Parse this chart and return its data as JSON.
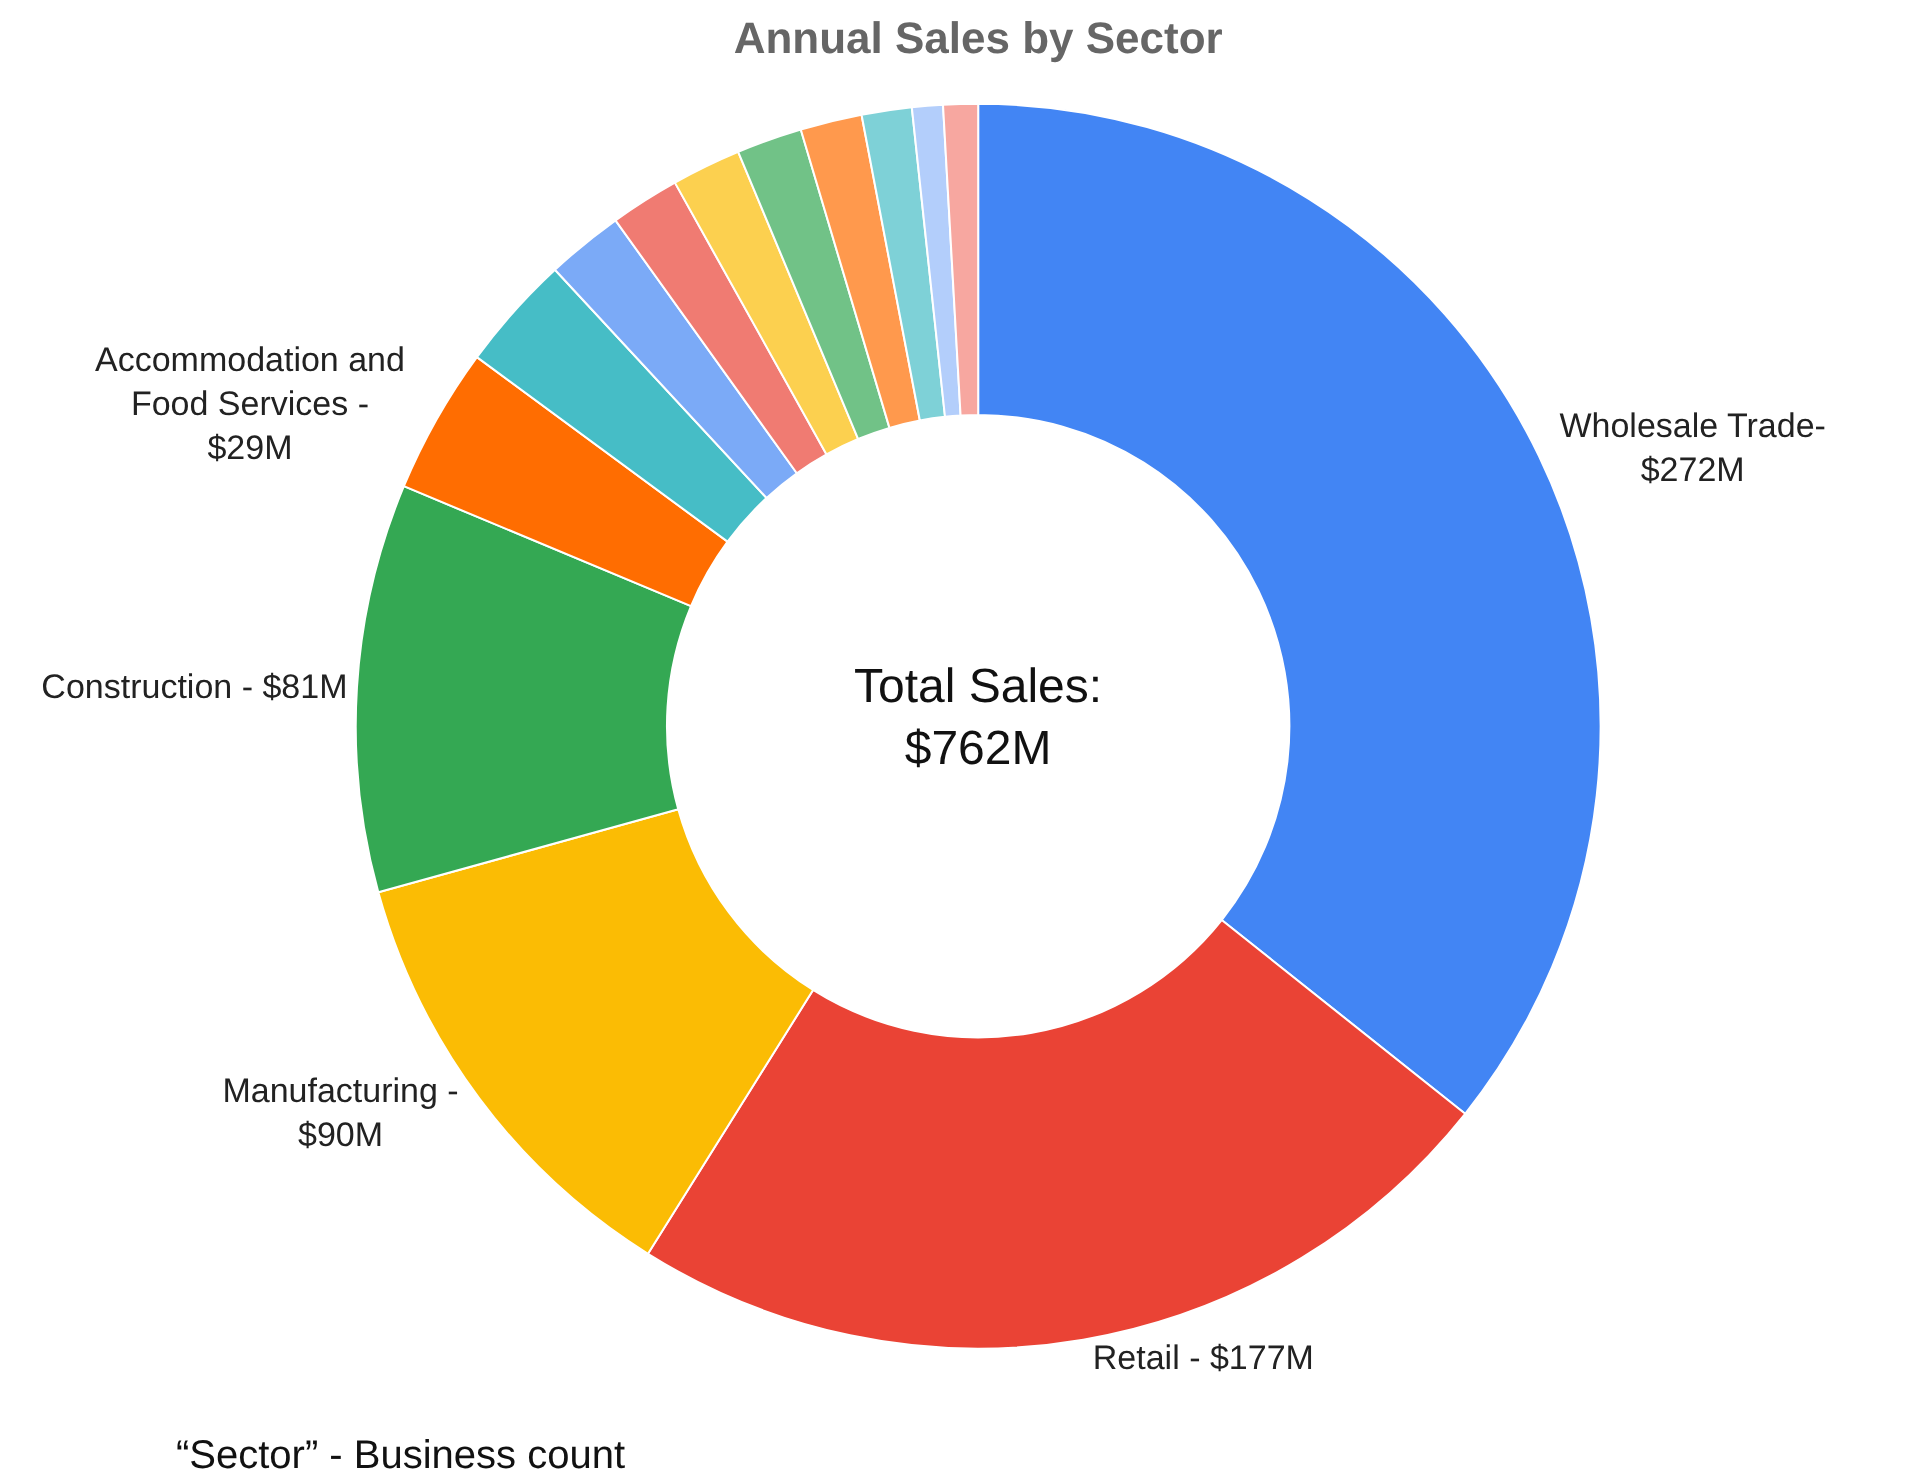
{
  "chart_data": {
    "type": "donut",
    "title": "Annual Sales by Sector",
    "categories": [
      "Wholesale Trade- $272M",
      "Retail - $177M",
      "Manufacturing - $90M",
      "Construction - $81M",
      "Accommodation and Food Services - $29M",
      null,
      null,
      null,
      null,
      null,
      null,
      null,
      null,
      null
    ],
    "values": [
      35.7,
      23.2,
      11.8,
      10.6,
      3.8,
      3.0,
      2.0,
      1.8,
      1.8,
      1.7,
      1.6,
      1.3,
      0.8,
      0.9
    ],
    "colors": [
      "#4285f4",
      "#ea4335",
      "#fbbc04",
      "#34a853",
      "#ff6d01",
      "#46bdc6",
      "#7baaf7",
      "#f07b72",
      "#fcd04f",
      "#71c287",
      "#ff994d",
      "#7ed1d7",
      "#b3cefb",
      "#f7a7a0"
    ],
    "annotations": [
      "Total Sales: $762M",
      "“Sector” - Business count"
    ],
    "legend": false
  }
}
